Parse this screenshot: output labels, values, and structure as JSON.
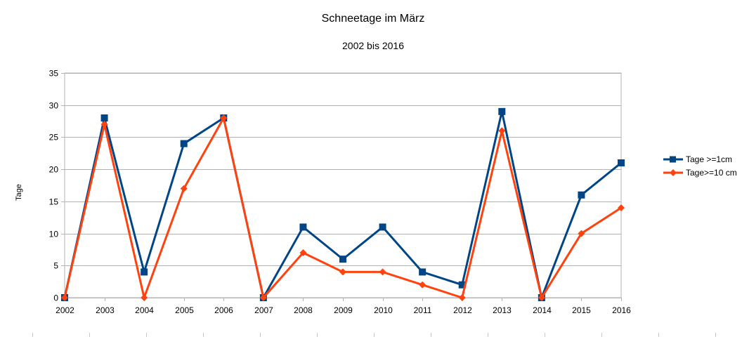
{
  "chart_data": {
    "type": "line",
    "title": "Schneetage im März",
    "subtitle": "2002 bis 2016",
    "xlabel": "",
    "ylabel": "Tage",
    "categories": [
      "2002",
      "2003",
      "2004",
      "2005",
      "2006",
      "2007",
      "2008",
      "2009",
      "2010",
      "2011",
      "2012",
      "2013",
      "2014",
      "2015",
      "2016"
    ],
    "ylim": [
      0,
      35
    ],
    "yticks": [
      0,
      5,
      10,
      15,
      20,
      25,
      30,
      35
    ],
    "grid": true,
    "legend": "right",
    "series": [
      {
        "name": "Tage >=1cm",
        "color": "#004586",
        "marker": "square",
        "values": [
          0,
          28,
          4,
          24,
          28,
          0,
          11,
          6,
          11,
          4,
          2,
          29,
          0,
          16,
          21
        ]
      },
      {
        "name": "Tage>=10 cm",
        "color": "#ff420e",
        "marker": "diamond",
        "values": [
          0,
          27,
          0,
          17,
          28,
          0,
          7,
          4,
          4,
          2,
          0,
          26,
          0,
          10,
          14
        ]
      }
    ]
  }
}
